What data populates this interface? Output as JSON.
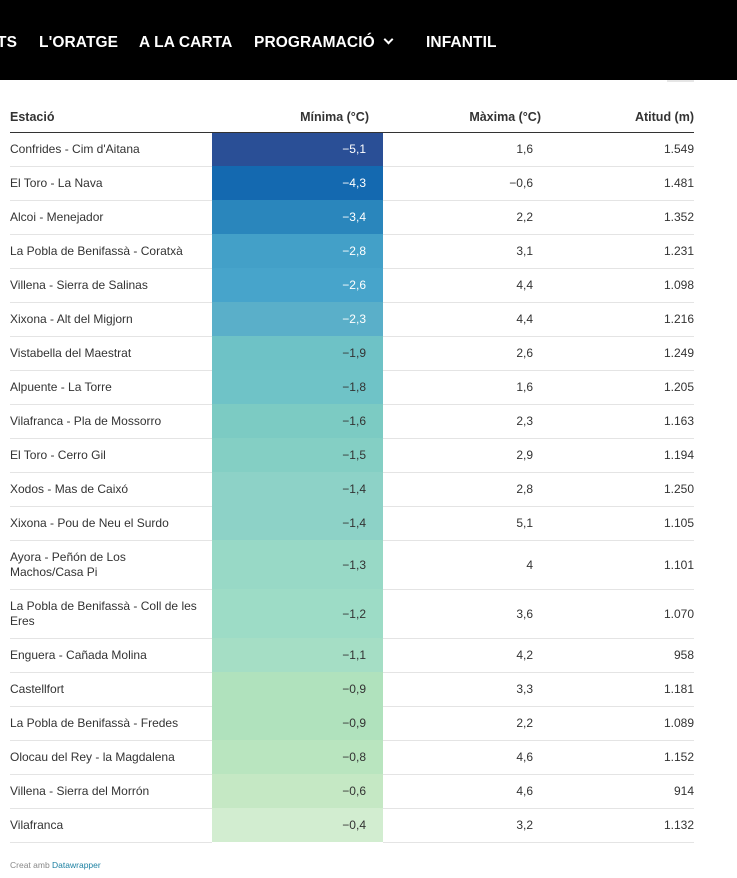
{
  "nav": {
    "items": [
      {
        "label": "TS"
      },
      {
        "label": "L'ORATGE"
      },
      {
        "label": "A LA CARTA"
      },
      {
        "label": "PROGRAMACIÓ"
      },
      {
        "label": "INFANTIL"
      }
    ]
  },
  "table": {
    "headers": [
      "Estació",
      "Mínima (°C)",
      "Màxima (°C)",
      "Atitud (m)"
    ],
    "rows": [
      {
        "station": "Confrides - Cim d'Aitana",
        "min": "−5,1",
        "max": "1,6",
        "alt": "1.549",
        "min_value": -5.1
      },
      {
        "station": "El Toro - La Nava",
        "min": "−4,3",
        "max": "−0,6",
        "alt": "1.481",
        "min_value": -4.3
      },
      {
        "station": "Alcoi - Menejador",
        "min": "−3,4",
        "max": "2,2",
        "alt": "1.352",
        "min_value": -3.4
      },
      {
        "station": "La Pobla de Benifassà - Coratxà",
        "min": "−2,8",
        "max": "3,1",
        "alt": "1.231",
        "min_value": -2.8
      },
      {
        "station": "Villena - Sierra de Salinas",
        "min": "−2,6",
        "max": "4,4",
        "alt": "1.098",
        "min_value": -2.6
      },
      {
        "station": "Xixona - Alt del Migjorn",
        "min": "−2,3",
        "max": "4,4",
        "alt": "1.216",
        "min_value": -2.3
      },
      {
        "station": "Vistabella del Maestrat",
        "min": "−1,9",
        "max": "2,6",
        "alt": "1.249",
        "min_value": -1.9
      },
      {
        "station": "Alpuente - La Torre",
        "min": "−1,8",
        "max": "1,6",
        "alt": "1.205",
        "min_value": -1.8
      },
      {
        "station": "Vilafranca - Pla de Mossorro",
        "min": "−1,6",
        "max": "2,3",
        "alt": "1.163",
        "min_value": -1.6
      },
      {
        "station": "El Toro - Cerro Gil",
        "min": "−1,5",
        "max": "2,9",
        "alt": "1.194",
        "min_value": -1.5
      },
      {
        "station": "Xodos - Mas de Caixó",
        "min": "−1,4",
        "max": "2,8",
        "alt": "1.250",
        "min_value": -1.4
      },
      {
        "station": "Xixona - Pou de Neu el Surdo",
        "min": "−1,4",
        "max": "5,1",
        "alt": "1.105",
        "min_value": -1.4
      },
      {
        "station": "Ayora - Peñón de Los Machos/Casa Pi",
        "min": "−1,3",
        "max": "4",
        "alt": "1.101",
        "min_value": -1.3
      },
      {
        "station": "La Pobla de Benifassà - Coll de les Eres",
        "min": "−1,2",
        "max": "3,6",
        "alt": "1.070",
        "min_value": -1.2
      },
      {
        "station": "Enguera - Cañada Molina",
        "min": "−1,1",
        "max": "4,2",
        "alt": "958",
        "min_value": -1.1
      },
      {
        "station": "Castellfort",
        "min": "−0,9",
        "max": "3,3",
        "alt": "1.181",
        "min_value": -0.9
      },
      {
        "station": "La Pobla de Benifassà - Fredes",
        "min": "−0,9",
        "max": "2,2",
        "alt": "1.089",
        "min_value": -0.9
      },
      {
        "station": "Olocau del Rey - la Magdalena",
        "min": "−0,8",
        "max": "4,6",
        "alt": "1.152",
        "min_value": -0.8
      },
      {
        "station": "Villena - Sierra del Morrón",
        "min": "−0,6",
        "max": "4,6",
        "alt": "914",
        "min_value": -0.6
      },
      {
        "station": "Vilafranca",
        "min": "−0,4",
        "max": "3,2",
        "alt": "1.132",
        "min_value": -0.4
      }
    ]
  },
  "heatmap_colors": {
    "-5.1": "#2a4f96",
    "-4.3": "#1469b0",
    "-3.4": "#2a86bc",
    "-2.8": "#43a0c8",
    "-2.6": "#47a4cb",
    "-2.3": "#5aafc9",
    "-1.9": "#6ec2c6",
    "-1.8": "#6fc3c7",
    "-1.6": "#7ccbc3",
    "-1.5": "#84cfc4",
    "-1.4": "#8dd2c7",
    "-1.3": "#98d9c6",
    "-1.2": "#9ddcc6",
    "-1.1": "#a5dec5",
    "-0.9": "#b0e2bd",
    "-0.8": "#b9e5bf",
    "-0.6": "#c5e8c4",
    "-0.4": "#d2edd0"
  },
  "footer": {
    "prefix": "Creat amb ",
    "link": "Datawrapper"
  }
}
